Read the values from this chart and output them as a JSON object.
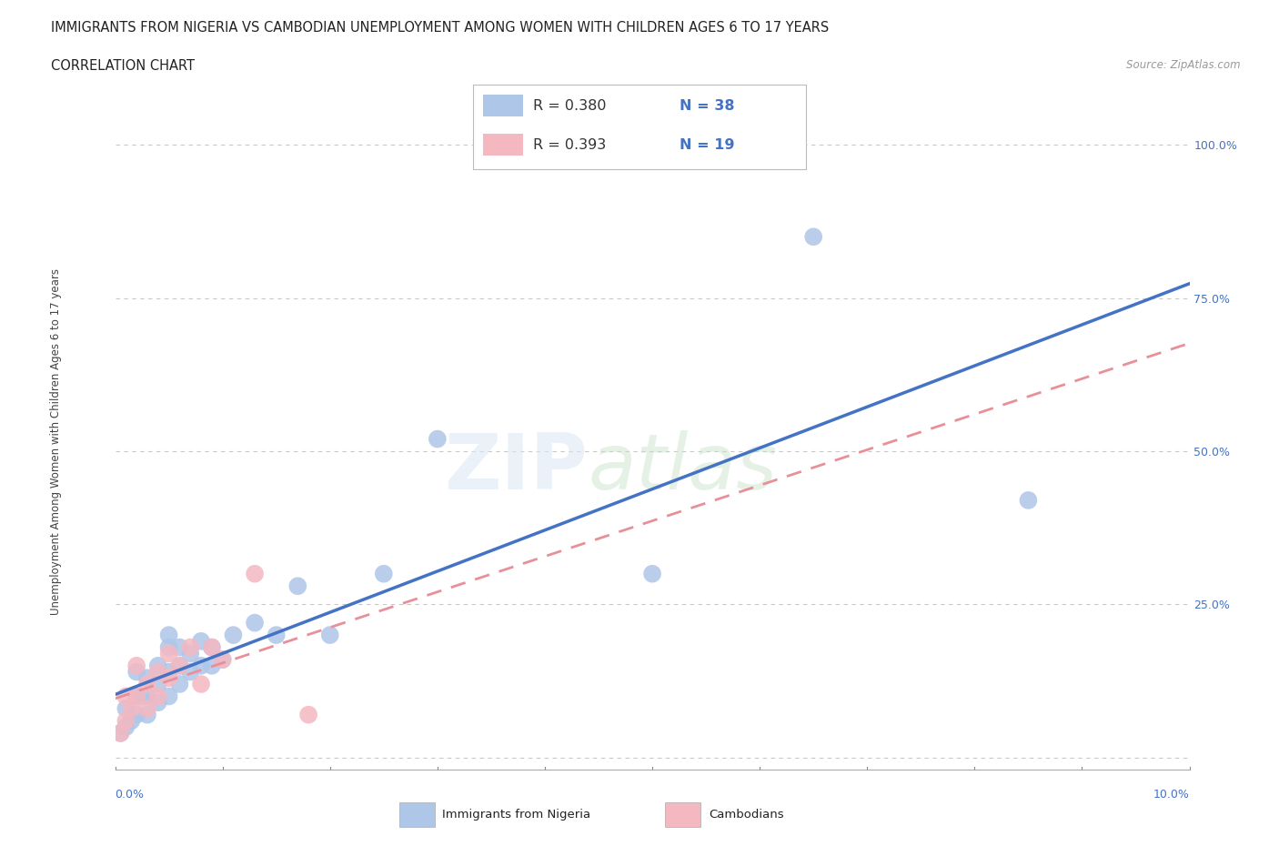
{
  "title1": "IMMIGRANTS FROM NIGERIA VS CAMBODIAN UNEMPLOYMENT AMONG WOMEN WITH CHILDREN AGES 6 TO 17 YEARS",
  "title2": "CORRELATION CHART",
  "source": "Source: ZipAtlas.com",
  "ylabel": "Unemployment Among Women with Children Ages 6 to 17 years",
  "xlim": [
    0.0,
    0.1
  ],
  "ylim": [
    -0.02,
    1.05
  ],
  "nigeria_R": "R = 0.380",
  "nigeria_N": "N = 38",
  "cambodia_R": "R = 0.393",
  "cambodia_N": "N = 19",
  "nigeria_color": "#aec6e8",
  "cambodia_color": "#f4b8c1",
  "nigeria_line_color": "#4472c4",
  "cambodia_line_color": "#e8909a",
  "grid_color": "#c8c8c8",
  "background_color": "#ffffff",
  "nigeria_x": [
    0.0005,
    0.001,
    0.001,
    0.0015,
    0.002,
    0.002,
    0.002,
    0.0025,
    0.003,
    0.003,
    0.003,
    0.004,
    0.004,
    0.004,
    0.005,
    0.005,
    0.005,
    0.005,
    0.006,
    0.006,
    0.006,
    0.007,
    0.007,
    0.008,
    0.008,
    0.009,
    0.009,
    0.01,
    0.011,
    0.013,
    0.015,
    0.017,
    0.02,
    0.025,
    0.03,
    0.05,
    0.065,
    0.085
  ],
  "nigeria_y": [
    0.04,
    0.05,
    0.08,
    0.06,
    0.07,
    0.1,
    0.14,
    0.1,
    0.07,
    0.1,
    0.13,
    0.09,
    0.12,
    0.15,
    0.1,
    0.14,
    0.18,
    0.2,
    0.12,
    0.15,
    0.18,
    0.14,
    0.17,
    0.15,
    0.19,
    0.15,
    0.18,
    0.16,
    0.2,
    0.22,
    0.2,
    0.28,
    0.2,
    0.3,
    0.52,
    0.3,
    0.85,
    0.42
  ],
  "cambodia_x": [
    0.0005,
    0.001,
    0.001,
    0.0015,
    0.002,
    0.002,
    0.003,
    0.003,
    0.004,
    0.004,
    0.005,
    0.005,
    0.006,
    0.007,
    0.008,
    0.009,
    0.01,
    0.013,
    0.018
  ],
  "cambodia_y": [
    0.04,
    0.06,
    0.1,
    0.08,
    0.1,
    0.15,
    0.08,
    0.12,
    0.1,
    0.14,
    0.13,
    0.17,
    0.15,
    0.18,
    0.12,
    0.18,
    0.16,
    0.3,
    0.07
  ],
  "ytick_vals": [
    0.0,
    0.25,
    0.5,
    0.75,
    1.0
  ],
  "ytick_labels_right": [
    "",
    "25.0%",
    "50.0%",
    "75.0%",
    "100.0%"
  ]
}
